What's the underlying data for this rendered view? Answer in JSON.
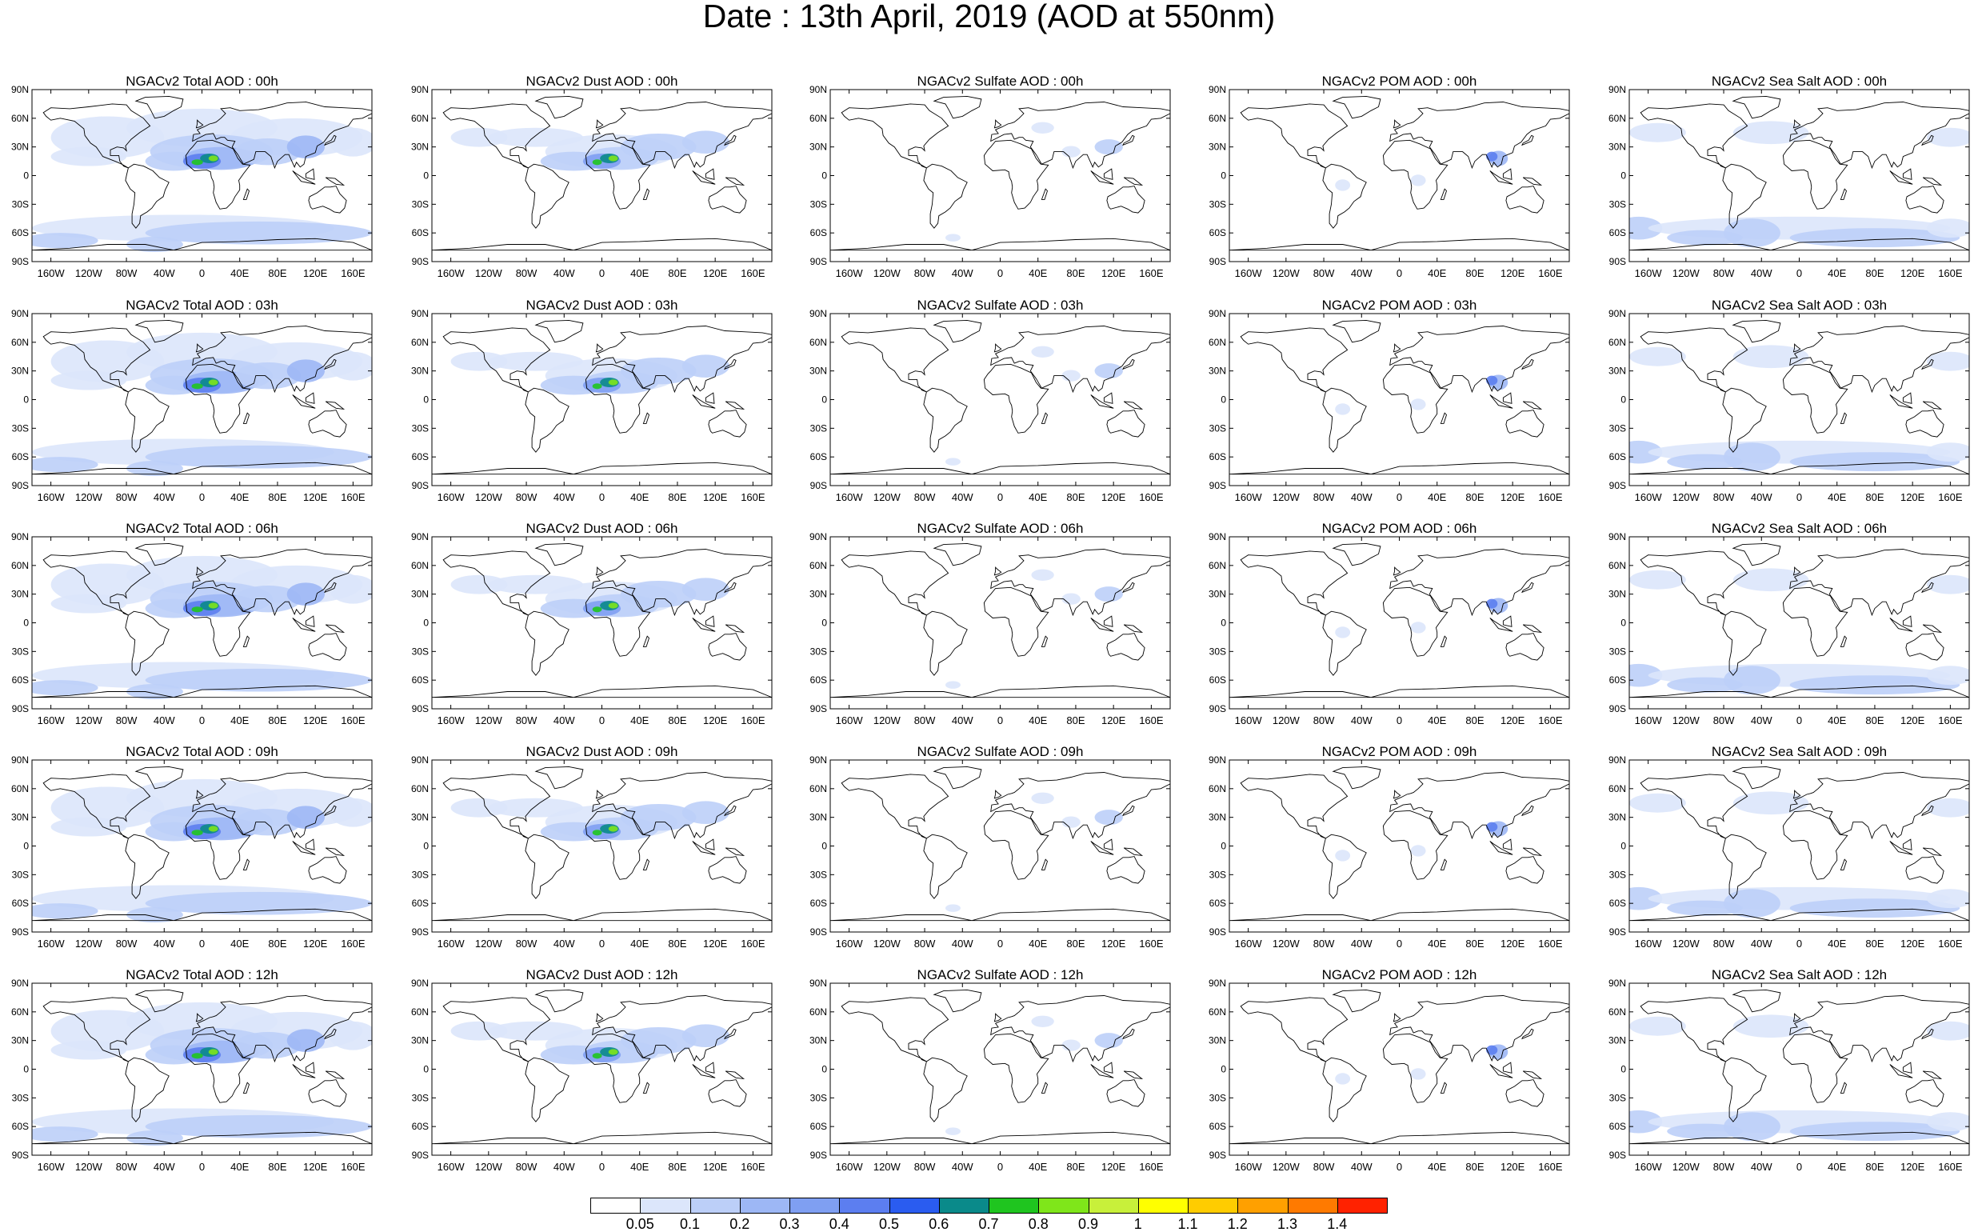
{
  "title": "Date : 13th April, 2019 (AOD at 550nm)",
  "lat_labels": [
    "90N",
    "60N",
    "30N",
    "0",
    "30S",
    "60S",
    "90S"
  ],
  "lon_labels": [
    "160W",
    "120W",
    "80W",
    "40W",
    "0",
    "40E",
    "80E",
    "120E",
    "160E"
  ],
  "panels": [
    [
      "NGACv2 Total AOD : 00h",
      "NGACv2 Dust AOD : 00h",
      "NGACv2 Sulfate AOD : 00h",
      "NGACv2 POM AOD : 00h",
      "NGACv2 Sea Salt AOD : 00h"
    ],
    [
      "NGACv2 Total AOD : 03h",
      "NGACv2 Dust AOD : 03h",
      "NGACv2 Sulfate AOD : 03h",
      "NGACv2 POM AOD : 03h",
      "NGACv2 Sea Salt AOD : 03h"
    ],
    [
      "NGACv2 Total AOD : 06h",
      "NGACv2 Dust AOD : 06h",
      "NGACv2 Sulfate AOD : 06h",
      "NGACv2 POM AOD : 06h",
      "NGACv2 Sea Salt AOD : 06h"
    ],
    [
      "NGACv2 Total AOD : 09h",
      "NGACv2 Dust AOD : 09h",
      "NGACv2 Sulfate AOD : 09h",
      "NGACv2 POM AOD : 09h",
      "NGACv2 Sea Salt  AOD : 09h"
    ],
    [
      "NGACv2 Total AOD : 12h",
      "NGACv2 Dust AOD : 12h",
      "NGACv2 Sulfate AOD : 12h",
      "NGACv2 POM  AOD : 12h",
      "NGACv2 Sea Salt AOD : 12h"
    ]
  ],
  "aerosol_types": [
    "total",
    "dust",
    "sulfate",
    "pom",
    "sea_salt"
  ],
  "colorbar": {
    "labels": [
      "0.05",
      "0.1",
      "0.2",
      "0.3",
      "0.4",
      "0.5",
      "0.6",
      "0.7",
      "0.8",
      "0.9",
      "1",
      "1.1",
      "1.2",
      "1.3",
      "1.4"
    ],
    "colors": [
      "#ffffff",
      "#dce6fb",
      "#bccff8",
      "#9db7f5",
      "#7f9ff2",
      "#5c7ef0",
      "#2a5cf0",
      "#0a8a8a",
      "#1fc51f",
      "#7fe61a",
      "#c8f03a",
      "#ffff00",
      "#ffcc00",
      "#ffa000",
      "#ff7a00",
      "#ff2200"
    ]
  }
}
